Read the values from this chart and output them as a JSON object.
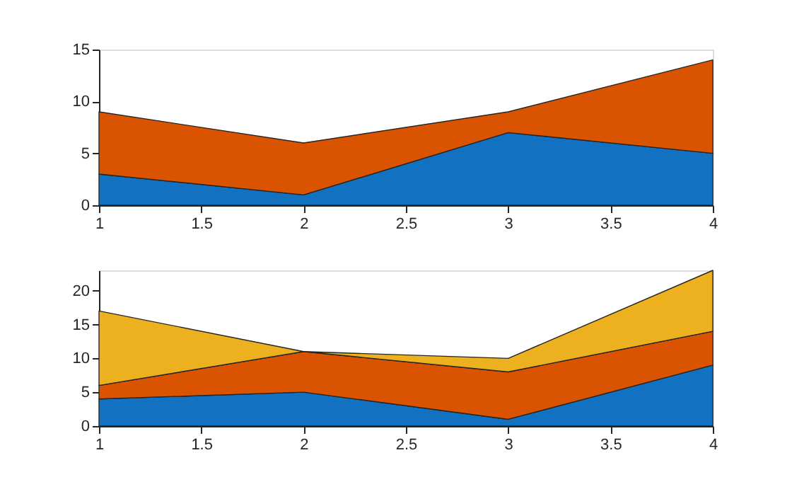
{
  "chart_data": [
    {
      "type": "area",
      "stacked": true,
      "x": [
        1,
        2,
        3,
        4
      ],
      "xlim": [
        1,
        4
      ],
      "xticks": [
        1,
        1.5,
        2,
        2.5,
        3,
        3.5,
        4
      ],
      "ylim": [
        0,
        15
      ],
      "yticks": [
        0,
        5,
        10,
        15
      ],
      "grid": false,
      "legend": false,
      "series": [
        {
          "color": "#1271c0",
          "values": [
            3,
            1,
            7,
            5
          ]
        },
        {
          "color": "#d95300",
          "values": [
            6,
            5,
            2,
            9
          ]
        }
      ]
    },
    {
      "type": "area",
      "stacked": true,
      "x": [
        1,
        2,
        3,
        4
      ],
      "xlim": [
        1,
        4
      ],
      "xticks": [
        1,
        1.5,
        2,
        2.5,
        3,
        3.5,
        4
      ],
      "ylim": [
        0,
        23
      ],
      "yticks": [
        0,
        5,
        10,
        15,
        20
      ],
      "grid": false,
      "legend": false,
      "series": [
        {
          "color": "#1271c0",
          "values": [
            4,
            5,
            1,
            9
          ]
        },
        {
          "color": "#d95300",
          "values": [
            2,
            6,
            7,
            5
          ]
        },
        {
          "color": "#edb120",
          "values": [
            11,
            0,
            2,
            9
          ]
        }
      ]
    }
  ]
}
